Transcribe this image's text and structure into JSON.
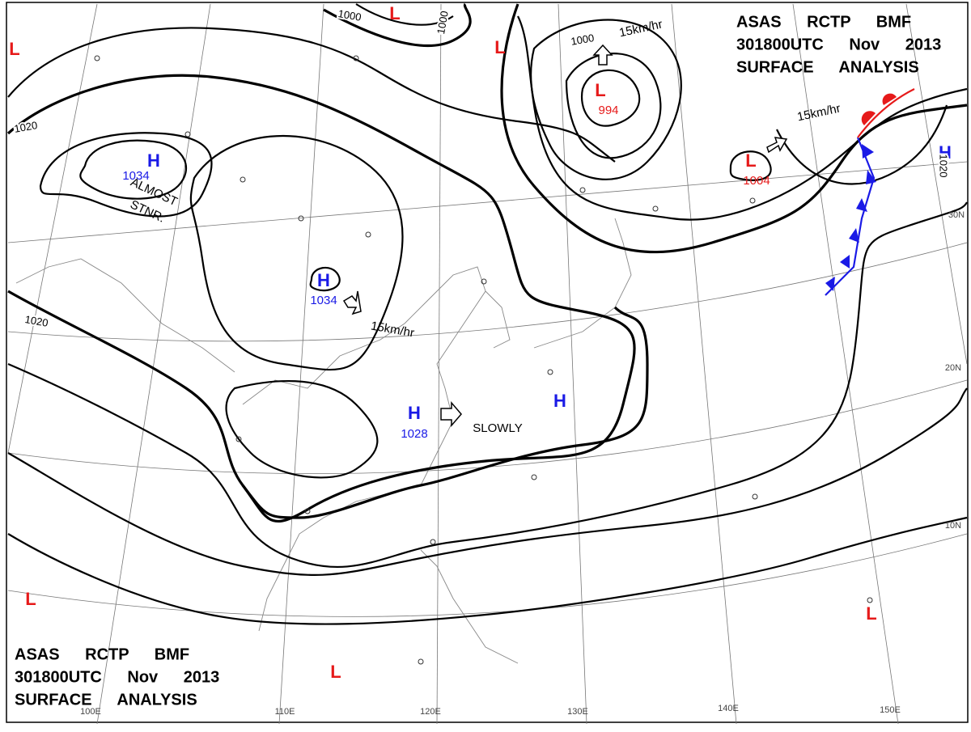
{
  "header_top": {
    "lines": [
      "ASAS RCTP BMF",
      "301800UTC Nov 2013",
      "SURFACE ANALYSIS"
    ]
  },
  "header_bottom": {
    "lines": [
      "ASAS RCTP BMF",
      "301800UTC Nov 2013",
      "SURFACE ANALYSIS"
    ]
  },
  "systems": [
    {
      "symbol": "H",
      "pressure": "1034",
      "color": "#1a1ae6"
    },
    {
      "symbol": "H",
      "pressure": "1034",
      "color": "#1a1ae6"
    },
    {
      "symbol": "H",
      "pressure": "1028",
      "color": "#1a1ae6"
    },
    {
      "symbol": "H",
      "color": "#1a1ae6"
    },
    {
      "symbol": "H",
      "color": "#1a1ae6"
    },
    {
      "symbol": "L",
      "pressure": "994",
      "color": "#e61a1a"
    },
    {
      "symbol": "L",
      "pressure": "1004",
      "color": "#e61a1a"
    },
    {
      "symbol": "L",
      "color": "#e61a1a"
    },
    {
      "symbol": "L",
      "color": "#e61a1a"
    },
    {
      "symbol": "L",
      "color": "#e61a1a"
    },
    {
      "symbol": "L",
      "color": "#e61a1a"
    },
    {
      "symbol": "L",
      "color": "#e61a1a"
    },
    {
      "symbol": "L",
      "color": "#e61a1a"
    }
  ],
  "isobar_labels": [
    "1000",
    "1000",
    "1000",
    "1020",
    "1020",
    "1020"
  ],
  "motion_labels": [
    "15km/hr",
    "15km/hr",
    "15km/hr",
    "SLOWLY",
    "ALMOST",
    "STNR."
  ],
  "latitude_labels": [
    "30N",
    "20N",
    "10N"
  ],
  "longitude_labels": [
    "100E",
    "110E",
    "120E",
    "130E",
    "140E",
    "150E"
  ]
}
